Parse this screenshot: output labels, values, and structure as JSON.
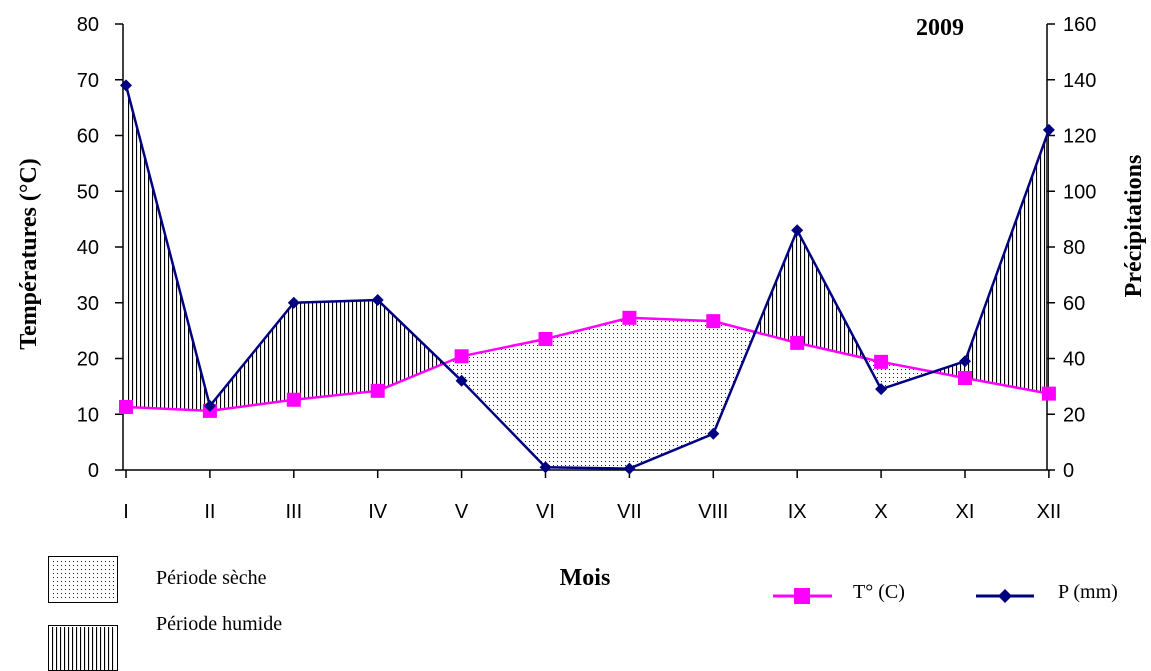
{
  "chart_data": {
    "type": "line",
    "title": "2009",
    "xlabel": "Mois",
    "ylabel_left": "Températures (°C)",
    "ylabel_right": "Précipitations",
    "categories": [
      "I",
      "II",
      "III",
      "IV",
      "V",
      "VI",
      "VII",
      "VIII",
      "IX",
      "X",
      "XI",
      "XII"
    ],
    "ylim_left": [
      0,
      80
    ],
    "ylim_right": [
      0,
      160
    ],
    "yticks_left": [
      0,
      10,
      20,
      30,
      40,
      50,
      60,
      70,
      80
    ],
    "yticks_right": [
      0,
      20,
      40,
      60,
      80,
      100,
      120,
      140,
      160
    ],
    "grid": false,
    "series": [
      {
        "name": "T° (C)",
        "axis": "left",
        "color": "#ff00ff",
        "marker": "square",
        "values": [
          11.3,
          10.6,
          12.6,
          14.2,
          20.4,
          23.5,
          27.3,
          26.7,
          22.8,
          19.4,
          16.5,
          13.7
        ]
      },
      {
        "name": "P (mm)",
        "axis": "right",
        "color": "#000080",
        "marker": "diamond",
        "values": [
          138,
          23,
          60,
          61,
          32,
          1,
          0.5,
          13,
          86,
          29,
          39,
          122
        ]
      }
    ],
    "legend": {
      "placement": "bottom",
      "dry_label": "Période sèche",
      "wet_label": "Période humide"
    }
  }
}
